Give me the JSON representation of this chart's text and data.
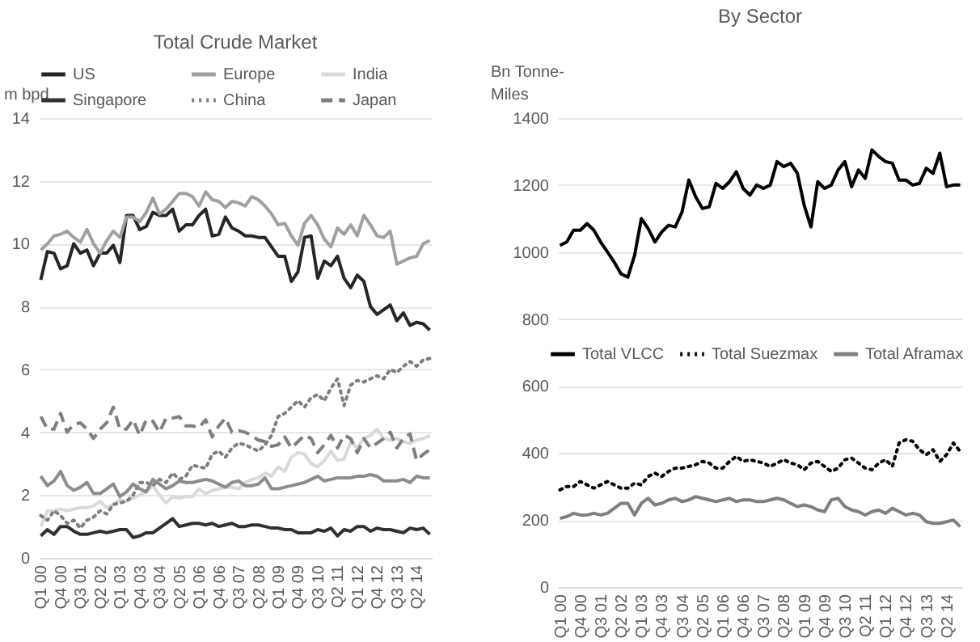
{
  "chart_data": [
    {
      "type": "line",
      "title": "Total Crude Market",
      "ylabel": "m bpd",
      "categories": [
        "Q1 00",
        null,
        null,
        "Q4 00",
        null,
        null,
        "Q3 01",
        null,
        null,
        "Q2 02",
        null,
        null,
        "Q1 03",
        null,
        null,
        "Q4 03",
        null,
        null,
        "Q3 04",
        null,
        null,
        "Q2 05",
        null,
        null,
        "Q1 06",
        null,
        null,
        "Q4 06",
        null,
        null,
        "Q3 07",
        null,
        null,
        "Q2 08",
        null,
        null,
        "Q1 09",
        null,
        null,
        "Q4 09",
        null,
        null,
        "Q3 10",
        null,
        null,
        "Q2 11",
        null,
        null,
        "Q1 12",
        null,
        null,
        "Q4 12",
        null,
        null,
        "Q3 13",
        null,
        null,
        "Q2 14",
        null,
        null
      ],
      "ylim": [
        0,
        14
      ],
      "yticks": [
        0,
        2,
        4,
        6,
        8,
        10,
        12,
        14
      ],
      "grid": "y",
      "legend": "top",
      "series": [
        {
          "name": "US",
          "color": "#262626",
          "values": [
            8.85,
            9.75,
            9.7,
            9.2,
            9.3,
            10.0,
            9.7,
            9.8,
            9.3,
            9.7,
            9.7,
            9.95,
            9.4,
            10.9,
            10.9,
            10.45,
            10.55,
            11.0,
            10.9,
            10.9,
            11.1,
            10.4,
            10.6,
            10.6,
            10.9,
            11.1,
            10.25,
            10.3,
            10.85,
            10.5,
            10.4,
            10.25,
            10.25,
            10.2,
            10.2,
            9.9,
            9.6,
            9.6,
            8.8,
            9.1,
            10.2,
            10.25,
            8.9,
            9.45,
            9.3,
            9.6,
            8.9,
            8.6,
            9.0,
            8.8,
            8.0,
            7.75,
            7.9,
            8.05,
            7.55,
            7.8,
            7.4,
            7.5,
            7.45,
            7.25
          ]
        },
        {
          "name": "Europe",
          "color": "#a0a0a0",
          "values": [
            9.8,
            10.0,
            10.25,
            10.3,
            10.4,
            10.2,
            10.05,
            10.45,
            10.0,
            9.7,
            10.1,
            10.4,
            10.2,
            10.85,
            10.85,
            10.7,
            11.0,
            11.45,
            10.95,
            11.1,
            11.35,
            11.6,
            11.6,
            11.5,
            11.2,
            11.65,
            11.4,
            11.35,
            11.15,
            11.35,
            11.3,
            11.2,
            11.5,
            11.4,
            11.2,
            10.95,
            10.6,
            10.65,
            10.25,
            9.95,
            10.65,
            10.9,
            10.6,
            10.15,
            9.9,
            10.5,
            10.3,
            10.6,
            10.25,
            10.9,
            10.6,
            10.25,
            10.2,
            10.4,
            9.35,
            9.45,
            9.55,
            9.6,
            10.0,
            10.1
          ]
        },
        {
          "name": "India",
          "color": "#d9d9d9",
          "values": [
            1.0,
            1.5,
            1.5,
            1.55,
            1.5,
            1.55,
            1.6,
            1.6,
            1.65,
            1.8,
            1.6,
            1.7,
            1.85,
            1.8,
            1.9,
            2.0,
            2.1,
            2.3,
            2.0,
            1.75,
            1.95,
            1.9,
            1.95,
            1.95,
            2.2,
            2.05,
            2.15,
            2.2,
            2.25,
            2.25,
            2.2,
            2.4,
            2.5,
            2.55,
            2.7,
            2.6,
            2.9,
            2.75,
            3.2,
            3.35,
            3.3,
            3.0,
            2.9,
            3.1,
            3.4,
            3.1,
            3.15,
            3.7,
            3.5,
            3.8,
            3.9,
            4.1,
            3.8,
            3.75,
            3.8,
            3.7,
            3.65,
            3.75,
            3.8,
            3.9
          ]
        },
        {
          "name": "Singapore",
          "color": "#303030",
          "values": [
            0.7,
            0.9,
            0.75,
            1.0,
            1.0,
            0.85,
            0.75,
            0.75,
            0.8,
            0.85,
            0.8,
            0.85,
            0.9,
            0.9,
            0.65,
            0.7,
            0.8,
            0.8,
            0.95,
            1.1,
            1.25,
            1.0,
            1.05,
            1.1,
            1.1,
            1.05,
            1.1,
            1.0,
            1.05,
            1.1,
            1.0,
            1.0,
            1.05,
            1.05,
            1.0,
            0.95,
            0.95,
            0.9,
            0.9,
            0.8,
            0.8,
            0.8,
            0.9,
            0.85,
            0.95,
            0.7,
            0.9,
            0.85,
            1.0,
            1.0,
            0.85,
            0.95,
            0.9,
            0.9,
            0.85,
            0.8,
            0.95,
            0.9,
            0.95,
            0.75
          ]
        },
        {
          "name": "China",
          "color": "#7f7f7f",
          "line_style": "dotted",
          "values": [
            1.35,
            1.2,
            1.5,
            1.35,
            1.1,
            1.2,
            0.95,
            1.2,
            1.3,
            1.5,
            1.4,
            1.7,
            1.75,
            1.8,
            2.0,
            2.4,
            2.4,
            2.3,
            2.5,
            2.4,
            2.7,
            2.5,
            2.6,
            2.95,
            2.9,
            2.85,
            3.3,
            3.4,
            3.2,
            3.5,
            3.65,
            3.6,
            3.5,
            3.4,
            3.6,
            3.9,
            4.5,
            4.6,
            4.8,
            5.0,
            4.8,
            5.1,
            5.2,
            5.0,
            5.4,
            5.7,
            4.85,
            5.5,
            5.65,
            5.6,
            5.7,
            5.8,
            5.7,
            6.0,
            5.9,
            6.1,
            6.25,
            6.1,
            6.3,
            6.35
          ]
        },
        {
          "name": "Japan",
          "color": "#7f7f7f",
          "line_style": "dashed",
          "values": [
            4.5,
            4.1,
            4.1,
            4.6,
            4.0,
            4.25,
            4.3,
            4.1,
            3.8,
            4.1,
            4.3,
            4.8,
            4.1,
            4.1,
            4.4,
            3.9,
            4.4,
            4.35,
            4.0,
            4.45,
            4.45,
            4.5,
            4.2,
            4.2,
            4.15,
            4.4,
            3.85,
            4.2,
            4.45,
            4.0,
            4.05,
            4.0,
            3.9,
            3.75,
            3.7,
            3.55,
            3.6,
            3.85,
            3.5,
            3.7,
            3.9,
            3.8,
            3.35,
            3.6,
            3.9,
            3.5,
            3.9,
            3.8,
            3.35,
            3.8,
            3.5,
            3.65,
            3.8,
            4.0,
            3.5,
            3.8,
            3.95,
            3.1,
            3.3,
            3.45
          ]
        },
        {
          "color": "#8c8c8c",
          "values": [
            2.6,
            2.3,
            2.45,
            2.75,
            2.3,
            2.15,
            2.25,
            2.4,
            2.05,
            2.05,
            2.2,
            2.35,
            1.95,
            2.1,
            2.35,
            2.2,
            2.1,
            2.5,
            2.35,
            2.2,
            2.3,
            2.45,
            2.4,
            2.4,
            2.45,
            2.5,
            2.45,
            2.35,
            2.25,
            2.4,
            2.45,
            2.3,
            2.3,
            2.35,
            2.55,
            2.2,
            2.2,
            2.25,
            2.3,
            2.35,
            2.4,
            2.5,
            2.6,
            2.45,
            2.5,
            2.55,
            2.55,
            2.55,
            2.6,
            2.6,
            2.65,
            2.6,
            2.45,
            2.45,
            2.45,
            2.5,
            2.4,
            2.6,
            2.55,
            2.55
          ]
        }
      ]
    },
    {
      "type": "line",
      "title": "By Sector",
      "ylabel": "Bn Tonne-Miles",
      "categories": [
        "Q1 00",
        null,
        null,
        "Q4 00",
        null,
        null,
        "Q3 01",
        null,
        null,
        "Q2 02",
        null,
        null,
        "Q1 03",
        null,
        null,
        "Q4 03",
        null,
        null,
        "Q3 04",
        null,
        null,
        "Q2 05",
        null,
        null,
        "Q1 06",
        null,
        null,
        "Q4 06",
        null,
        null,
        "Q3 07",
        null,
        null,
        "Q2 08",
        null,
        null,
        "Q1 09",
        null,
        null,
        "Q4 09",
        null,
        null,
        "Q3 10",
        null,
        null,
        "Q2 11",
        null,
        null,
        "Q1 12",
        null,
        null,
        "Q4 12",
        null,
        null,
        "Q3 13",
        null,
        null,
        "Q2 14",
        null,
        null
      ],
      "ylim": [
        0,
        1400
      ],
      "yticks": [
        0,
        200,
        400,
        600,
        800,
        1000,
        1200,
        1400
      ],
      "grid": "y",
      "legend": "center",
      "series": [
        {
          "name": "Total VLCC",
          "color": "#000000",
          "values": [
            1020,
            1030,
            1065,
            1065,
            1085,
            1065,
            1030,
            1000,
            970,
            935,
            925,
            990,
            1100,
            1070,
            1030,
            1060,
            1080,
            1075,
            1120,
            1215,
            1165,
            1130,
            1135,
            1205,
            1190,
            1210,
            1240,
            1190,
            1170,
            1200,
            1190,
            1200,
            1270,
            1255,
            1265,
            1235,
            1140,
            1075,
            1210,
            1190,
            1200,
            1245,
            1270,
            1195,
            1245,
            1220,
            1305,
            1285,
            1270,
            1265,
            1215,
            1215,
            1200,
            1205,
            1250,
            1235,
            1295,
            1195,
            1200,
            1200
          ]
        },
        {
          "name": "Total Suezmax",
          "color": "#000000",
          "line_style": "dotted",
          "values": [
            290,
            300,
            300,
            315,
            305,
            295,
            305,
            315,
            305,
            295,
            295,
            310,
            305,
            330,
            340,
            330,
            345,
            355,
            355,
            360,
            365,
            375,
            370,
            355,
            355,
            375,
            390,
            375,
            380,
            375,
            370,
            360,
            370,
            380,
            370,
            365,
            350,
            370,
            375,
            360,
            345,
            355,
            380,
            385,
            370,
            355,
            350,
            370,
            380,
            360,
            430,
            440,
            435,
            410,
            395,
            410,
            375,
            395,
            430,
            405
          ]
        },
        {
          "name": "Total Aframax",
          "color": "#7f7f7f",
          "values": [
            205,
            210,
            220,
            215,
            215,
            220,
            215,
            220,
            235,
            250,
            250,
            215,
            250,
            265,
            245,
            250,
            260,
            265,
            255,
            260,
            270,
            265,
            260,
            255,
            260,
            265,
            255,
            260,
            260,
            255,
            255,
            260,
            265,
            260,
            250,
            240,
            245,
            240,
            230,
            225,
            260,
            265,
            240,
            230,
            225,
            215,
            225,
            230,
            220,
            235,
            225,
            215,
            220,
            215,
            195,
            190,
            190,
            195,
            200,
            180
          ]
        }
      ]
    }
  ]
}
